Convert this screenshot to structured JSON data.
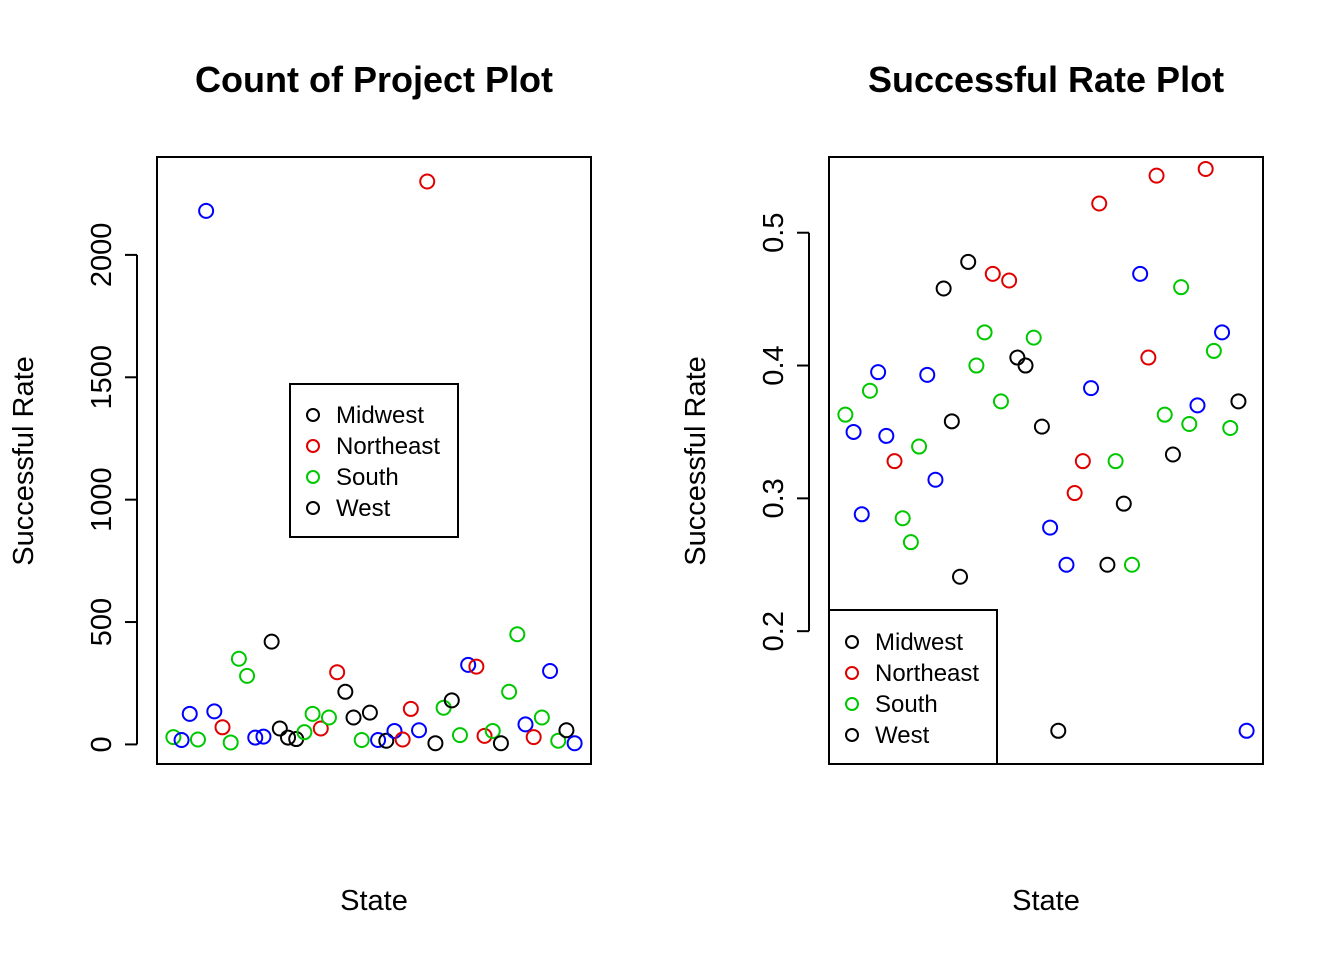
{
  "chart_data": [
    {
      "type": "scatter",
      "title": "Count of Project  Plot",
      "xlabel": "State",
      "ylabel": "Successful Rate",
      "ylim": [
        -80,
        2400
      ],
      "xlim": [
        -1,
        52
      ],
      "yticks": [
        0,
        500,
        1000,
        1500,
        2000
      ],
      "yticklabels": [
        "0",
        "500",
        "1000",
        "1500",
        "2000"
      ],
      "legend": {
        "position": "center",
        "entries": [
          {
            "label": "Midwest",
            "color": "#000000"
          },
          {
            "label": "Northeast",
            "color": "#DF0000"
          },
          {
            "label": "South",
            "color": "#00C800"
          },
          {
            "label": "West",
            "color": "#000000"
          }
        ]
      },
      "points": [
        {
          "x": 1,
          "y": 30,
          "color": "#00C800"
        },
        {
          "x": 2,
          "y": 18,
          "color": "#0000FF"
        },
        {
          "x": 3,
          "y": 125,
          "color": "#0000FF"
        },
        {
          "x": 4,
          "y": 20,
          "color": "#00C800"
        },
        {
          "x": 5,
          "y": 2180,
          "color": "#0000FF"
        },
        {
          "x": 6,
          "y": 135,
          "color": "#0000FF"
        },
        {
          "x": 7,
          "y": 70,
          "color": "#DF0000"
        },
        {
          "x": 8,
          "y": 8,
          "color": "#00C800"
        },
        {
          "x": 9,
          "y": 350,
          "color": "#00C800"
        },
        {
          "x": 10,
          "y": 280,
          "color": "#00C800"
        },
        {
          "x": 11,
          "y": 28,
          "color": "#0000FF"
        },
        {
          "x": 12,
          "y": 32,
          "color": "#0000FF"
        },
        {
          "x": 13,
          "y": 420,
          "color": "#000000"
        },
        {
          "x": 14,
          "y": 65,
          "color": "#000000"
        },
        {
          "x": 15,
          "y": 28,
          "color": "#000000"
        },
        {
          "x": 16,
          "y": 22,
          "color": "#000000"
        },
        {
          "x": 17,
          "y": 50,
          "color": "#00C800"
        },
        {
          "x": 18,
          "y": 125,
          "color": "#00C800"
        },
        {
          "x": 19,
          "y": 65,
          "color": "#DF0000"
        },
        {
          "x": 20,
          "y": 110,
          "color": "#00C800"
        },
        {
          "x": 21,
          "y": 295,
          "color": "#DF0000"
        },
        {
          "x": 22,
          "y": 215,
          "color": "#000000"
        },
        {
          "x": 23,
          "y": 110,
          "color": "#000000"
        },
        {
          "x": 24,
          "y": 18,
          "color": "#00C800"
        },
        {
          "x": 25,
          "y": 130,
          "color": "#000000"
        },
        {
          "x": 26,
          "y": 18,
          "color": "#0000FF"
        },
        {
          "x": 27,
          "y": 15,
          "color": "#000000"
        },
        {
          "x": 28,
          "y": 55,
          "color": "#0000FF"
        },
        {
          "x": 29,
          "y": 20,
          "color": "#DF0000"
        },
        {
          "x": 30,
          "y": 145,
          "color": "#DF0000"
        },
        {
          "x": 31,
          "y": 58,
          "color": "#0000FF"
        },
        {
          "x": 32,
          "y": 2300,
          "color": "#DF0000"
        },
        {
          "x": 33,
          "y": 5,
          "color": "#000000"
        },
        {
          "x": 34,
          "y": 150,
          "color": "#00C800"
        },
        {
          "x": 35,
          "y": 180,
          "color": "#000000"
        },
        {
          "x": 36,
          "y": 38,
          "color": "#00C800"
        },
        {
          "x": 37,
          "y": 325,
          "color": "#0000FF"
        },
        {
          "x": 38,
          "y": 318,
          "color": "#DF0000"
        },
        {
          "x": 39,
          "y": 35,
          "color": "#DF0000"
        },
        {
          "x": 40,
          "y": 55,
          "color": "#00C800"
        },
        {
          "x": 41,
          "y": 5,
          "color": "#000000"
        },
        {
          "x": 42,
          "y": 215,
          "color": "#00C800"
        },
        {
          "x": 43,
          "y": 450,
          "color": "#00C800"
        },
        {
          "x": 44,
          "y": 82,
          "color": "#0000FF"
        },
        {
          "x": 45,
          "y": 30,
          "color": "#DF0000"
        },
        {
          "x": 46,
          "y": 110,
          "color": "#00C800"
        },
        {
          "x": 47,
          "y": 300,
          "color": "#0000FF"
        },
        {
          "x": 48,
          "y": 15,
          "color": "#00C800"
        },
        {
          "x": 49,
          "y": 58,
          "color": "#000000"
        },
        {
          "x": 50,
          "y": 5,
          "color": "#0000FF"
        }
      ]
    },
    {
      "type": "scatter",
      "title": "Successful Rate Plot",
      "xlabel": "State",
      "ylabel": "Successful Rate",
      "ylim": [
        0.1,
        0.557
      ],
      "xlim": [
        -1,
        52
      ],
      "yticks": [
        0.2,
        0.3,
        0.4,
        0.5
      ],
      "yticklabels": [
        "0.2",
        "0.3",
        "0.4",
        "0.5"
      ],
      "legend": {
        "position": "bottom-left",
        "entries": [
          {
            "label": "Midwest",
            "color": "#000000"
          },
          {
            "label": "Northeast",
            "color": "#DF0000"
          },
          {
            "label": "South",
            "color": "#00C800"
          },
          {
            "label": "West",
            "color": "#000000"
          }
        ]
      },
      "points": [
        {
          "x": 1,
          "y": 0.363,
          "color": "#00C800"
        },
        {
          "x": 2,
          "y": 0.35,
          "color": "#0000FF"
        },
        {
          "x": 3,
          "y": 0.288,
          "color": "#0000FF"
        },
        {
          "x": 4,
          "y": 0.381,
          "color": "#00C800"
        },
        {
          "x": 5,
          "y": 0.395,
          "color": "#0000FF"
        },
        {
          "x": 6,
          "y": 0.347,
          "color": "#0000FF"
        },
        {
          "x": 7,
          "y": 0.328,
          "color": "#DF0000"
        },
        {
          "x": 8,
          "y": 0.285,
          "color": "#00C800"
        },
        {
          "x": 9,
          "y": 0.267,
          "color": "#00C800"
        },
        {
          "x": 10,
          "y": 0.339,
          "color": "#00C800"
        },
        {
          "x": 11,
          "y": 0.393,
          "color": "#0000FF"
        },
        {
          "x": 12,
          "y": 0.314,
          "color": "#0000FF"
        },
        {
          "x": 13,
          "y": 0.458,
          "color": "#000000"
        },
        {
          "x": 14,
          "y": 0.358,
          "color": "#000000"
        },
        {
          "x": 15,
          "y": 0.241,
          "color": "#000000"
        },
        {
          "x": 16,
          "y": 0.478,
          "color": "#000000"
        },
        {
          "x": 17,
          "y": 0.4,
          "color": "#00C800"
        },
        {
          "x": 18,
          "y": 0.425,
          "color": "#00C800"
        },
        {
          "x": 19,
          "y": 0.469,
          "color": "#DF0000"
        },
        {
          "x": 20,
          "y": 0.373,
          "color": "#00C800"
        },
        {
          "x": 21,
          "y": 0.464,
          "color": "#DF0000"
        },
        {
          "x": 22,
          "y": 0.406,
          "color": "#000000"
        },
        {
          "x": 23,
          "y": 0.4,
          "color": "#000000"
        },
        {
          "x": 24,
          "y": 0.421,
          "color": "#00C800"
        },
        {
          "x": 25,
          "y": 0.354,
          "color": "#000000"
        },
        {
          "x": 26,
          "y": 0.278,
          "color": "#0000FF"
        },
        {
          "x": 27,
          "y": 0.125,
          "color": "#000000"
        },
        {
          "x": 28,
          "y": 0.25,
          "color": "#0000FF"
        },
        {
          "x": 29,
          "y": 0.304,
          "color": "#DF0000"
        },
        {
          "x": 30,
          "y": 0.328,
          "color": "#DF0000"
        },
        {
          "x": 31,
          "y": 0.383,
          "color": "#0000FF"
        },
        {
          "x": 32,
          "y": 0.522,
          "color": "#DF0000"
        },
        {
          "x": 33,
          "y": 0.25,
          "color": "#000000"
        },
        {
          "x": 34,
          "y": 0.328,
          "color": "#00C800"
        },
        {
          "x": 35,
          "y": 0.296,
          "color": "#000000"
        },
        {
          "x": 36,
          "y": 0.25,
          "color": "#00C800"
        },
        {
          "x": 37,
          "y": 0.469,
          "color": "#0000FF"
        },
        {
          "x": 38,
          "y": 0.406,
          "color": "#DF0000"
        },
        {
          "x": 39,
          "y": 0.543,
          "color": "#DF0000"
        },
        {
          "x": 40,
          "y": 0.363,
          "color": "#00C800"
        },
        {
          "x": 41,
          "y": 0.333,
          "color": "#000000"
        },
        {
          "x": 42,
          "y": 0.459,
          "color": "#00C800"
        },
        {
          "x": 43,
          "y": 0.356,
          "color": "#00C800"
        },
        {
          "x": 44,
          "y": 0.37,
          "color": "#0000FF"
        },
        {
          "x": 45,
          "y": 0.548,
          "color": "#DF0000"
        },
        {
          "x": 46,
          "y": 0.411,
          "color": "#00C800"
        },
        {
          "x": 47,
          "y": 0.425,
          "color": "#0000FF"
        },
        {
          "x": 48,
          "y": 0.353,
          "color": "#00C800"
        },
        {
          "x": 49,
          "y": 0.373,
          "color": "#000000"
        },
        {
          "x": 50,
          "y": 0.125,
          "color": "#0000FF"
        }
      ]
    }
  ]
}
